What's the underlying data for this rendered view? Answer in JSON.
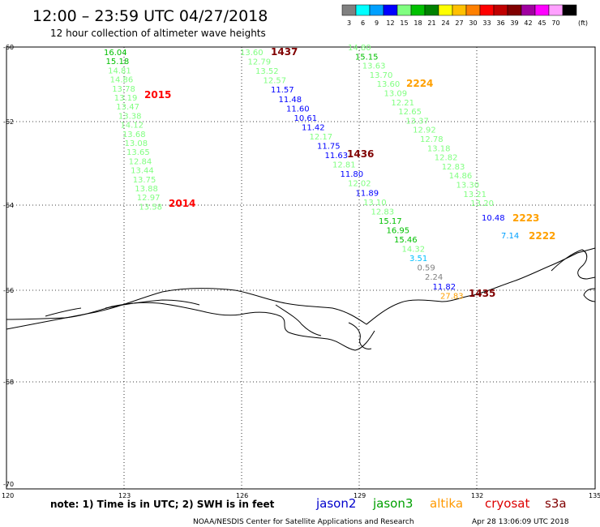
{
  "header": {
    "title": "12:00 – 23:59 UTC 04/27/2018",
    "subtitle": "12 hour collection of altimeter wave heights"
  },
  "colorbar": {
    "unit": "(ft)",
    "bins": [
      {
        "label": "3",
        "color": "#808080"
      },
      {
        "label": "6",
        "color": "#00ffff"
      },
      {
        "label": "9",
        "color": "#00a0ff"
      },
      {
        "label": "12",
        "color": "#0000ff"
      },
      {
        "label": "15",
        "color": "#80ff80"
      },
      {
        "label": "18",
        "color": "#00c000"
      },
      {
        "label": "21",
        "color": "#008000"
      },
      {
        "label": "24",
        "color": "#ffff00"
      },
      {
        "label": "27",
        "color": "#ffc000"
      },
      {
        "label": "30",
        "color": "#ff8000"
      },
      {
        "label": "33",
        "color": "#ff0000"
      },
      {
        "label": "36",
        "color": "#c00000"
      },
      {
        "label": "39",
        "color": "#800000"
      },
      {
        "label": "42",
        "color": "#a000a0"
      },
      {
        "label": "45",
        "color": "#ff00ff"
      },
      {
        "label": "70",
        "color": "#ffa0ff"
      },
      {
        "label": "",
        "color": "#000000"
      }
    ]
  },
  "axes": {
    "lat_labels": [
      "-60",
      "-62",
      "-64",
      "-66",
      "-68",
      "-70"
    ],
    "lon_labels": [
      "120",
      "123",
      "126",
      "129",
      "132",
      "135"
    ]
  },
  "tracks": {
    "track_2015": {
      "time_label": "2015",
      "time_color": "#ff0000",
      "values": [
        {
          "v": "16.04",
          "c": "#00c000"
        },
        {
          "v": "15.18",
          "c": "#00c000"
        },
        {
          "v": "14.81",
          "c": "#80ff80"
        },
        {
          "v": "14.86",
          "c": "#80ff80"
        },
        {
          "v": "13.78",
          "c": "#80ff80"
        },
        {
          "v": "13.19",
          "c": "#80ff80"
        },
        {
          "v": "13.47",
          "c": "#80ff80"
        },
        {
          "v": "13.38",
          "c": "#80ff80"
        },
        {
          "v": "14.12",
          "c": "#80ff80"
        },
        {
          "v": "13.68",
          "c": "#80ff80"
        },
        {
          "v": "13.08",
          "c": "#80ff80"
        },
        {
          "v": "13.65",
          "c": "#80ff80"
        },
        {
          "v": "12.84",
          "c": "#80ff80"
        },
        {
          "v": "13.44",
          "c": "#80ff80"
        },
        {
          "v": "13.75",
          "c": "#80ff80"
        },
        {
          "v": "13.88",
          "c": "#80ff80"
        },
        {
          "v": "12.97",
          "c": "#80ff80"
        },
        {
          "v": "13.58",
          "c": "#80ff80"
        }
      ],
      "end_label": "2014",
      "end_color": "#ff0000"
    },
    "track_1437": {
      "time_label": "1437",
      "time_color": "#800000",
      "values": [
        {
          "v": "13.60",
          "c": "#80ff80"
        },
        {
          "v": "12.79",
          "c": "#80ff80"
        },
        {
          "v": "13.52",
          "c": "#80ff80"
        },
        {
          "v": "12.57",
          "c": "#80ff80"
        },
        {
          "v": "11.57",
          "c": "#0000ff"
        },
        {
          "v": "11.48",
          "c": "#0000ff"
        },
        {
          "v": "11.60",
          "c": "#0000ff"
        },
        {
          "v": "10.61",
          "c": "#0000ff"
        },
        {
          "v": "11.42",
          "c": "#0000ff"
        },
        {
          "v": "12.17",
          "c": "#80ff80"
        },
        {
          "v": "11.75",
          "c": "#0000ff"
        },
        {
          "v": "11.63",
          "c": "#0000ff"
        },
        {
          "v": "12.81",
          "c": "#80ff80"
        },
        {
          "v": "11.80",
          "c": "#0000ff"
        },
        {
          "v": "12.02",
          "c": "#80ff80"
        },
        {
          "v": "11.89",
          "c": "#0000ff"
        },
        {
          "v": "13.10",
          "c": "#80ff80"
        },
        {
          "v": "12.83",
          "c": "#80ff80"
        },
        {
          "v": "15.17",
          "c": "#00c000"
        },
        {
          "v": "16.95",
          "c": "#00c000"
        },
        {
          "v": "15.46",
          "c": "#00c000"
        },
        {
          "v": "14.32",
          "c": "#80ff80"
        },
        {
          "v": "3.51",
          "c": "#00c0ff"
        },
        {
          "v": "0.59",
          "c": "#808080"
        },
        {
          "v": "2.24",
          "c": "#808080"
        },
        {
          "v": "11.82",
          "c": "#0000ff"
        },
        {
          "v": "27.83",
          "c": "#ffa000"
        }
      ],
      "mid_label": "1436",
      "mid_color": "#800000",
      "end_label": "1435",
      "end_color": "#800000"
    },
    "track_2224": {
      "time_label": "2224",
      "time_color": "#ffa000",
      "values": [
        {
          "v": "14.80",
          "c": "#80ff80"
        },
        {
          "v": "15.15",
          "c": "#00c000"
        },
        {
          "v": "13.63",
          "c": "#80ff80"
        },
        {
          "v": "13.70",
          "c": "#80ff80"
        },
        {
          "v": "13.60",
          "c": "#80ff80"
        },
        {
          "v": "13.09",
          "c": "#80ff80"
        },
        {
          "v": "12.21",
          "c": "#80ff80"
        },
        {
          "v": "12.65",
          "c": "#80ff80"
        },
        {
          "v": "13.37",
          "c": "#80ff80"
        },
        {
          "v": "12.92",
          "c": "#80ff80"
        },
        {
          "v": "12.78",
          "c": "#80ff80"
        },
        {
          "v": "13.18",
          "c": "#80ff80"
        },
        {
          "v": "12.82",
          "c": "#80ff80"
        },
        {
          "v": "12.83",
          "c": "#80ff80"
        },
        {
          "v": "14.86",
          "c": "#80ff80"
        },
        {
          "v": "13.30",
          "c": "#80ff80"
        },
        {
          "v": "13.21",
          "c": "#80ff80"
        },
        {
          "v": "13.20",
          "c": "#80ff80"
        }
      ]
    },
    "extra": [
      {
        "v": "10.48",
        "c": "#0000ff"
      },
      {
        "v": "2223",
        "c": "#ffa000"
      },
      {
        "v": "7.14",
        "c": "#00a0ff"
      },
      {
        "v": "2222",
        "c": "#ffa000"
      }
    ]
  },
  "footer": {
    "note": "note: 1) Time is in UTC; 2) SWH is in feet",
    "satellites": [
      {
        "name": "jason2",
        "color": "#0000cc"
      },
      {
        "name": "jason3",
        "color": "#00a000"
      },
      {
        "name": "altika",
        "color": "#ff9900"
      },
      {
        "name": "cryosat",
        "color": "#dd0000"
      },
      {
        "name": "s3a",
        "color": "#800000"
      }
    ],
    "credit": "NOAA/NESDIS Center for Satellite Applications and Research",
    "timestamp": "Apr 28 13:06:09 UTC 2018"
  }
}
